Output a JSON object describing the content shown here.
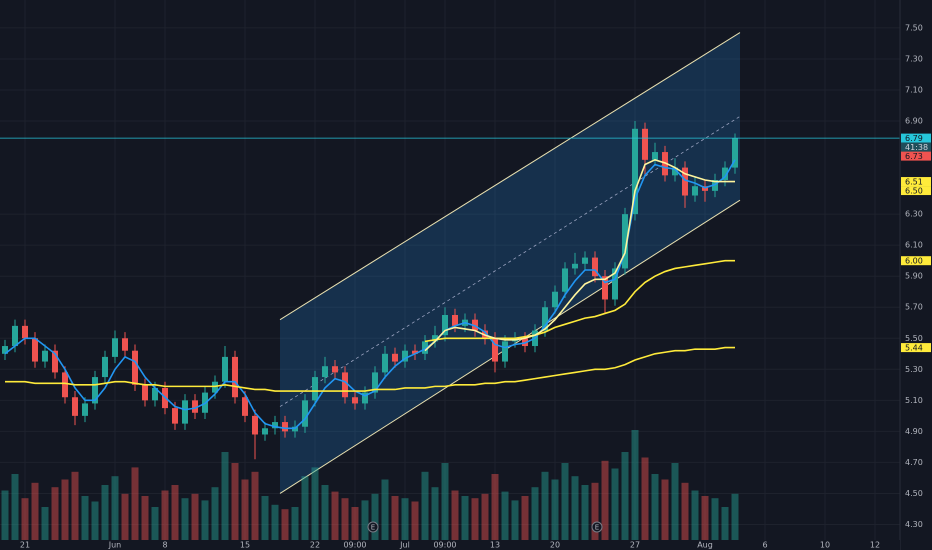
{
  "chart_data": {
    "type": "candlestick",
    "categories": [
      null,
      null,
      "21",
      null,
      null,
      null,
      null,
      null,
      null,
      null,
      null,
      "Jun",
      null,
      null,
      null,
      null,
      "8",
      null,
      null,
      null,
      null,
      null,
      null,
      null,
      "15",
      null,
      null,
      null,
      null,
      null,
      null,
      "22",
      null,
      null,
      null,
      "09:00",
      null,
      null,
      null,
      null,
      "Jul",
      null,
      null,
      null,
      "09:00",
      null,
      null,
      null,
      null,
      "13",
      null,
      null,
      null,
      null,
      null,
      "20",
      null,
      null,
      null,
      null,
      null,
      null,
      null,
      "27",
      null,
      null,
      null,
      null,
      null,
      null,
      "Aug",
      null,
      null,
      null,
      null,
      null,
      "6",
      null,
      null,
      null,
      null,
      null,
      "10",
      null,
      null,
      null,
      null,
      "12",
      null,
      null
    ],
    "ohlc": [
      [
        5.4,
        5.49,
        5.36,
        5.45
      ],
      [
        5.45,
        5.62,
        5.41,
        5.58
      ],
      [
        5.58,
        5.62,
        5.46,
        5.5
      ],
      [
        5.5,
        5.54,
        5.31,
        5.35
      ],
      [
        5.35,
        5.46,
        5.31,
        5.42
      ],
      [
        5.42,
        5.46,
        5.24,
        5.28
      ],
      [
        5.28,
        5.32,
        5.08,
        5.12
      ],
      [
        5.12,
        5.16,
        4.94,
        5.0
      ],
      [
        5.0,
        5.12,
        4.96,
        5.08
      ],
      [
        5.08,
        5.29,
        5.04,
        5.25
      ],
      [
        5.25,
        5.42,
        5.21,
        5.38
      ],
      [
        5.38,
        5.55,
        5.34,
        5.5
      ],
      [
        5.5,
        5.54,
        5.38,
        5.42
      ],
      [
        5.42,
        5.46,
        5.16,
        5.2
      ],
      [
        5.2,
        5.24,
        5.06,
        5.1
      ],
      [
        5.1,
        5.22,
        5.06,
        5.18
      ],
      [
        5.18,
        5.22,
        5.01,
        5.05
      ],
      [
        5.05,
        5.09,
        4.91,
        4.95
      ],
      [
        4.95,
        5.14,
        4.91,
        5.1
      ],
      [
        5.1,
        5.14,
        4.98,
        5.02
      ],
      [
        5.02,
        5.19,
        4.98,
        5.15
      ],
      [
        5.15,
        5.26,
        5.11,
        5.22
      ],
      [
        5.22,
        5.45,
        5.18,
        5.38
      ],
      [
        5.38,
        5.42,
        5.08,
        5.12
      ],
      [
        5.12,
        5.16,
        4.96,
        5.0
      ],
      [
        5.0,
        5.04,
        4.72,
        4.88
      ],
      [
        4.88,
        4.96,
        4.84,
        4.92
      ],
      [
        4.92,
        5.0,
        4.88,
        4.96
      ],
      [
        4.96,
        5.0,
        4.86,
        4.9
      ],
      [
        4.9,
        4.97,
        4.86,
        4.93
      ],
      [
        4.93,
        5.14,
        4.89,
        5.1
      ],
      [
        5.1,
        5.29,
        5.06,
        5.25
      ],
      [
        5.25,
        5.38,
        5.21,
        5.32
      ],
      [
        5.32,
        5.36,
        5.24,
        5.28
      ],
      [
        5.28,
        5.32,
        5.08,
        5.12
      ],
      [
        5.12,
        5.16,
        5.04,
        5.08
      ],
      [
        5.08,
        5.19,
        5.04,
        5.15
      ],
      [
        5.15,
        5.32,
        5.11,
        5.28
      ],
      [
        5.28,
        5.45,
        5.24,
        5.4
      ],
      [
        5.4,
        5.44,
        5.31,
        5.35
      ],
      [
        5.35,
        5.46,
        5.31,
        5.42
      ],
      [
        5.42,
        5.46,
        5.36,
        5.4
      ],
      [
        5.4,
        5.52,
        5.36,
        5.48
      ],
      [
        5.48,
        5.58,
        5.44,
        5.52
      ],
      [
        5.52,
        5.7,
        5.48,
        5.65
      ],
      [
        5.65,
        5.69,
        5.54,
        5.58
      ],
      [
        5.58,
        5.66,
        5.54,
        5.62
      ],
      [
        5.62,
        5.66,
        5.51,
        5.55
      ],
      [
        5.55,
        5.59,
        5.46,
        5.5
      ],
      [
        5.5,
        5.54,
        5.28,
        5.35
      ],
      [
        5.35,
        5.52,
        5.31,
        5.48
      ],
      [
        5.48,
        5.54,
        5.44,
        5.5
      ],
      [
        5.5,
        5.54,
        5.41,
        5.45
      ],
      [
        5.45,
        5.59,
        5.41,
        5.55
      ],
      [
        5.55,
        5.74,
        5.51,
        5.7
      ],
      [
        5.7,
        5.84,
        5.66,
        5.8
      ],
      [
        5.8,
        5.99,
        5.76,
        5.95
      ],
      [
        5.95,
        6.05,
        5.91,
        5.98
      ],
      [
        5.98,
        6.06,
        5.94,
        6.02
      ],
      [
        6.02,
        6.06,
        5.86,
        5.9
      ],
      [
        5.9,
        5.94,
        5.66,
        5.75
      ],
      [
        5.75,
        5.99,
        5.71,
        5.95
      ],
      [
        5.95,
        6.34,
        5.91,
        6.3
      ],
      [
        6.3,
        6.9,
        6.26,
        6.85
      ],
      [
        6.85,
        6.89,
        6.55,
        6.65
      ],
      [
        6.65,
        6.76,
        6.61,
        6.7
      ],
      [
        6.7,
        6.74,
        6.51,
        6.55
      ],
      [
        6.55,
        6.66,
        6.51,
        6.6
      ],
      [
        6.6,
        6.64,
        6.34,
        6.42
      ],
      [
        6.42,
        6.54,
        6.38,
        6.48
      ],
      [
        6.48,
        6.52,
        6.38,
        6.45
      ],
      [
        6.45,
        6.56,
        6.41,
        6.52
      ],
      [
        6.52,
        6.64,
        6.48,
        6.6
      ],
      [
        6.6,
        6.82,
        6.56,
        6.79
      ],
      null,
      null,
      null,
      null,
      null,
      null,
      null,
      null,
      null,
      null,
      null,
      null,
      null,
      null,
      null,
      null
    ],
    "volume": [
      45,
      60,
      38,
      52,
      30,
      48,
      55,
      62,
      40,
      35,
      50,
      58,
      42,
      66,
      40,
      30,
      45,
      50,
      38,
      42,
      36,
      48,
      80,
      70,
      55,
      62,
      40,
      32,
      28,
      30,
      58,
      66,
      50,
      44,
      38,
      30,
      36,
      42,
      55,
      40,
      38,
      35,
      62,
      48,
      70,
      45,
      40,
      38,
      42,
      60,
      44,
      36,
      40,
      48,
      62,
      55,
      70,
      58,
      50,
      52,
      72,
      65,
      80,
      100,
      75,
      60,
      55,
      70,
      52,
      45,
      40,
      38,
      30,
      42,
      null,
      null,
      null,
      null,
      null,
      null,
      null,
      null,
      null,
      null,
      null,
      null,
      null,
      null,
      null,
      null
    ],
    "volume_lim": [
      0,
      100
    ],
    "series": [
      {
        "color": "#2196f3",
        "values": [
          5.4,
          5.45,
          5.5,
          5.5,
          5.45,
          5.4,
          5.3,
          5.18,
          5.1,
          5.1,
          5.18,
          5.3,
          5.38,
          5.35,
          5.25,
          5.18,
          5.12,
          5.06,
          5.04,
          5.05,
          5.08,
          5.14,
          5.22,
          5.22,
          5.14,
          5.02,
          4.95,
          4.93,
          4.92,
          4.92,
          4.98,
          5.08,
          5.18,
          5.24,
          5.22,
          5.16,
          5.13,
          5.16,
          5.25,
          5.32,
          5.37,
          5.4,
          5.43,
          5.48,
          5.55,
          5.58,
          5.6,
          5.58,
          5.54,
          5.46,
          5.44,
          5.46,
          5.47,
          5.5,
          5.58,
          5.67,
          5.78,
          5.87,
          5.94,
          5.94,
          5.86,
          5.88,
          6.05,
          6.4,
          6.55,
          6.62,
          6.6,
          6.59,
          6.52,
          6.5,
          6.47,
          6.49,
          6.54,
          6.65,
          null,
          null,
          null,
          null,
          null,
          null,
          null,
          null,
          null,
          null,
          null,
          null,
          null,
          null,
          null,
          null
        ]
      },
      {
        "color": "#ffeb3b",
        "values": [
          5.22,
          5.22,
          5.22,
          5.21,
          5.21,
          5.21,
          5.21,
          5.2,
          5.2,
          5.2,
          5.21,
          5.22,
          5.22,
          5.21,
          5.2,
          5.2,
          5.19,
          5.19,
          5.19,
          5.19,
          5.19,
          5.19,
          5.2,
          5.19,
          5.18,
          5.17,
          5.17,
          5.16,
          5.16,
          5.16,
          5.16,
          5.16,
          5.16,
          5.16,
          5.16,
          5.16,
          5.16,
          5.17,
          5.17,
          5.17,
          5.18,
          5.18,
          5.18,
          5.19,
          5.19,
          5.2,
          5.2,
          5.2,
          5.21,
          5.21,
          5.22,
          5.22,
          5.23,
          5.24,
          5.25,
          5.26,
          5.27,
          5.28,
          5.29,
          5.3,
          5.3,
          5.31,
          5.33,
          5.36,
          5.38,
          5.4,
          5.41,
          5.42,
          5.42,
          5.43,
          5.43,
          5.43,
          5.44,
          5.44,
          null,
          null,
          null,
          null,
          null,
          null,
          null,
          null,
          null,
          null,
          null,
          null,
          null,
          null,
          null,
          null
        ]
      },
      {
        "color": "#ffeb3b",
        "values": [
          null,
          null,
          null,
          null,
          null,
          null,
          null,
          null,
          null,
          null,
          null,
          null,
          null,
          null,
          null,
          null,
          null,
          null,
          null,
          null,
          null,
          null,
          null,
          null,
          null,
          null,
          null,
          null,
          null,
          null,
          null,
          null,
          null,
          null,
          null,
          null,
          null,
          null,
          null,
          null,
          null,
          null,
          5.48,
          5.49,
          5.5,
          5.5,
          5.5,
          5.5,
          5.5,
          5.5,
          5.5,
          5.5,
          5.51,
          5.52,
          5.54,
          5.57,
          5.59,
          5.61,
          5.63,
          5.64,
          5.66,
          5.68,
          5.72,
          5.8,
          5.86,
          5.9,
          5.93,
          5.95,
          5.96,
          5.97,
          5.98,
          5.99,
          6.0,
          6.0,
          null,
          null,
          null,
          null,
          null,
          null,
          null,
          null,
          null,
          null,
          null,
          null,
          null,
          null,
          null,
          null
        ]
      },
      {
        "color": "#fff59d",
        "values": [
          null,
          null,
          null,
          null,
          null,
          null,
          null,
          null,
          null,
          null,
          null,
          null,
          null,
          null,
          null,
          null,
          null,
          null,
          null,
          null,
          null,
          null,
          null,
          null,
          null,
          null,
          null,
          null,
          null,
          null,
          null,
          null,
          null,
          null,
          null,
          null,
          null,
          null,
          null,
          null,
          null,
          null,
          5.42,
          5.48,
          5.55,
          5.57,
          5.56,
          5.55,
          5.52,
          5.5,
          5.49,
          5.49,
          5.5,
          5.52,
          5.56,
          5.62,
          5.7,
          5.78,
          5.85,
          5.88,
          5.88,
          5.92,
          6.05,
          6.45,
          6.62,
          6.65,
          6.63,
          6.6,
          6.56,
          6.54,
          6.52,
          6.51,
          6.51,
          6.51,
          null,
          null,
          null,
          null,
          null,
          null,
          null,
          null,
          null,
          null,
          null,
          null,
          null,
          null,
          null,
          null
        ]
      }
    ],
    "channel": {
      "x": [
        28,
        74
      ],
      "upper": [
        5.62,
        7.47
      ],
      "lower": [
        4.5,
        6.39
      ]
    },
    "ylim": [
      4.2,
      7.68
    ],
    "yticks": [
      {
        "value": 7.5,
        "label": "7.50"
      },
      {
        "value": 7.3,
        "label": "7.30"
      },
      {
        "value": 7.1,
        "label": "7.10"
      },
      {
        "value": 6.9,
        "label": "6.90"
      },
      {
        "value": 6.3,
        "label": "6.30"
      },
      {
        "value": 6.1,
        "label": "6.10"
      },
      {
        "value": 5.9,
        "label": "5.90"
      },
      {
        "value": 5.7,
        "label": "5.70"
      },
      {
        "value": 5.5,
        "label": "5.50"
      },
      {
        "value": 5.3,
        "label": "5.30"
      },
      {
        "value": 5.1,
        "label": "5.10"
      },
      {
        "value": 4.9,
        "label": "4.90"
      },
      {
        "value": 4.7,
        "label": "4.70"
      },
      {
        "value": 4.5,
        "label": "4.50"
      },
      {
        "value": 4.3,
        "label": "4.30"
      }
    ],
    "price_tags": [
      {
        "value": 6.79,
        "label": "6.79",
        "color": "#26c6da"
      },
      {
        "value": 6.73,
        "label": "6.73",
        "color": "#ef5350"
      },
      {
        "value": 6.51,
        "label": "6.51",
        "color": "#ffeb3b"
      },
      {
        "value": 6.5,
        "label": "6.50",
        "color": "#ffeb3b"
      },
      {
        "value": 6.0,
        "label": "6.00",
        "color": "#ffeb3b"
      },
      {
        "value": 5.44,
        "label": "5.44",
        "color": "#ffeb3b"
      }
    ],
    "countdown": "41:38",
    "events": [
      "E",
      "E"
    ],
    "colors": {
      "up": "#26a69a",
      "down": "#ef5350",
      "channel": "#2196f3",
      "last_line": "#26c6da"
    },
    "grid": true
  }
}
